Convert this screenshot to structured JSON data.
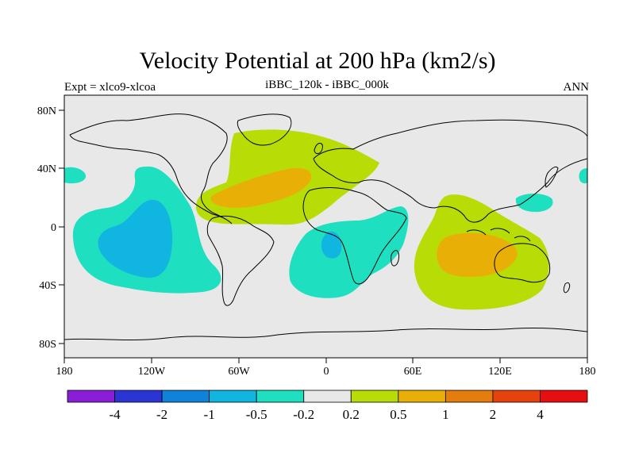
{
  "title": "Velocity Potential at 200 hPa (km2/s)",
  "left_subtitle": "Expt = xlco9-xlcoa",
  "center_subtitle": "iBBC_120k - iBBC_000k",
  "right_subtitle": "ANN",
  "x_ticks": [
    "180",
    "120W",
    "60W",
    "0",
    "60E",
    "120E",
    "180"
  ],
  "y_ticks": [
    "80N",
    "40N",
    "0",
    "40S",
    "80S"
  ],
  "colorbar": {
    "colors": [
      "#8a1ed8",
      "#2b35d6",
      "#0f82d9",
      "#10b6e0",
      "#1ee0c0",
      "#e8e8e8",
      "#b8dc06",
      "#e8b006",
      "#e47c0e",
      "#e6420e",
      "#e60e0e"
    ],
    "labels": [
      "-4",
      "-2",
      "-1",
      "-0.5",
      "-0.2",
      "0.2",
      "0.5",
      "1",
      "2",
      "4"
    ]
  },
  "chart_data": {
    "type": "map",
    "title": "Velocity Potential at 200 hPa (km2/s)",
    "variable": "velocity potential difference, 200 hPa",
    "units": "km2/s",
    "projection": "cylindrical equidistant",
    "lon_range": [
      -180,
      180
    ],
    "lat_range": [
      -90,
      90
    ],
    "levels": [
      -4,
      -2,
      -1,
      -0.5,
      -0.2,
      0.2,
      0.5,
      1,
      2,
      4
    ],
    "features": [
      {
        "region": "central/east tropical Pacific",
        "lon": [
          -155,
          -115
        ],
        "lat": [
          -35,
          40
        ],
        "category": "-0.5 to -0.2 (peak -1 to -0.5)"
      },
      {
        "region": "South Atlantic / southern Africa",
        "lon": [
          -15,
          30
        ],
        "lat": [
          -55,
          5
        ],
        "category": "-0.5 to -0.2 (peak -1 to -0.5)"
      },
      {
        "region": "North Atlantic / Caribbean",
        "lon": [
          -90,
          10
        ],
        "lat": [
          0,
          60
        ],
        "category": "0.2 to 0.5 (peak 0.5 to 1)"
      },
      {
        "region": "Maritime continent / Australia",
        "lon": [
          70,
          160
        ],
        "lat": [
          -60,
          20
        ],
        "category": "0.2 to 0.5 (peak 0.5 to 1)"
      },
      {
        "region": "western North Pacific",
        "lon": [
          135,
          150
        ],
        "lat": [
          20,
          30
        ],
        "category": "-0.5 to -0.2"
      }
    ]
  }
}
